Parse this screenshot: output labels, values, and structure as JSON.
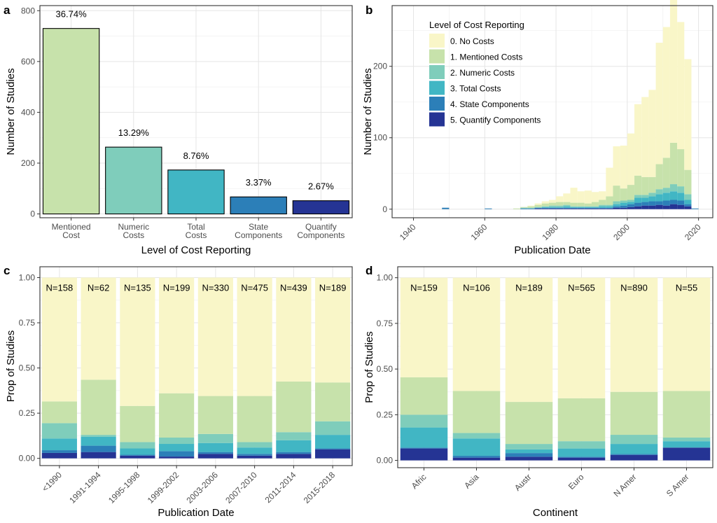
{
  "colors": {
    "level0": "#f9f6c8",
    "level1": "#c7e2ab",
    "level2": "#7fcdbb",
    "level3": "#41b6c4",
    "level4": "#2c7fb8",
    "level5": "#253494"
  },
  "chart_data": [
    {
      "panel": "a",
      "type": "bar",
      "xlabel": "Level of Cost Reporting",
      "ylabel": "Number of Studies",
      "categories": [
        "Mentioned\nCost",
        "Numeric\nCosts",
        "Total\nCosts",
        "State\nComponents",
        "Quantify\nComponents"
      ],
      "values": [
        730,
        263,
        173,
        67,
        52
      ],
      "labels": [
        "36.74%",
        "13.29%",
        "8.76%",
        "3.37%",
        "2.67%"
      ],
      "bar_colors": [
        "#c7e2ab",
        "#7fcdbb",
        "#41b6c4",
        "#2c7fb8",
        "#253494"
      ],
      "ylim": [
        -15,
        820
      ],
      "yticks": [
        0,
        200,
        400,
        600,
        800
      ],
      "grid": true
    },
    {
      "panel": "b",
      "type": "bar",
      "stacked": true,
      "xlabel": "Publication Date",
      "ylabel": "Number of Studies",
      "xlim": [
        1934,
        2024
      ],
      "xticks": [
        1940,
        1960,
        1980,
        2000,
        2020
      ],
      "ylim": [
        -12,
        285
      ],
      "yticks": [
        0,
        100,
        200
      ],
      "legend_title": "Level of Cost Reporting",
      "legend_position": "top-left",
      "legend_labels": [
        "0. No Costs",
        "1. Mentioned Costs",
        "2. Numeric Costs",
        "3. Total Costs",
        "4. State Components",
        "5. Quantify Components"
      ],
      "bin_width": 2,
      "bins": [
        1948,
        1960,
        1966,
        1968,
        1970,
        1972,
        1974,
        1976,
        1978,
        1980,
        1982,
        1984,
        1986,
        1988,
        1990,
        1992,
        1994,
        1996,
        1998,
        2000,
        2002,
        2004,
        2006,
        2008,
        2010,
        2012,
        2014,
        2016,
        2018
      ],
      "series": [
        {
          "name": "0. No Costs",
          "values": [
            0,
            0,
            0,
            0,
            0,
            1,
            2,
            3,
            4,
            8,
            12,
            21,
            16,
            18,
            14,
            12,
            40,
            55,
            60,
            72,
            100,
            112,
            122,
            170,
            183,
            205,
            178,
            155,
            0
          ]
        },
        {
          "name": "1. Mentioned Costs",
          "values": [
            0,
            0,
            0,
            1,
            1,
            2,
            3,
            4,
            4,
            5,
            4,
            5,
            5,
            4,
            6,
            7,
            12,
            22,
            17,
            21,
            27,
            25,
            22,
            35,
            42,
            58,
            52,
            34,
            0
          ]
        },
        {
          "name": "2. Numeric Costs",
          "values": [
            0,
            0,
            0,
            0,
            1,
            1,
            1,
            1,
            2,
            2,
            2,
            1,
            1,
            1,
            1,
            2,
            2,
            4,
            3,
            3,
            4,
            4,
            5,
            7,
            7,
            10,
            9,
            8,
            0
          ]
        },
        {
          "name": "3. Total Costs",
          "values": [
            0,
            0,
            0,
            0,
            0,
            0,
            0,
            1,
            1,
            1,
            2,
            1,
            1,
            1,
            1,
            2,
            2,
            3,
            4,
            3,
            7,
            6,
            7,
            10,
            11,
            12,
            11,
            6,
            0
          ]
        },
        {
          "name": "4. State Components",
          "values": [
            2,
            1,
            0,
            0,
            1,
            1,
            1,
            1,
            1,
            1,
            1,
            1,
            1,
            1,
            1,
            1,
            1,
            2,
            3,
            4,
            5,
            5,
            6,
            5,
            7,
            6,
            6,
            3,
            1
          ]
        },
        {
          "name": "5. Quantify Components",
          "values": [
            0,
            0,
            0,
            0,
            0,
            0,
            1,
            1,
            1,
            1,
            1,
            1,
            1,
            1,
            1,
            1,
            1,
            2,
            2,
            3,
            4,
            5,
            5,
            6,
            5,
            7,
            6,
            4,
            0
          ]
        }
      ],
      "grid": true
    },
    {
      "panel": "c",
      "type": "bar",
      "stacked": true,
      "xlabel": "Publication Date",
      "ylabel": "Prop of Studies",
      "categories": [
        "<1990",
        "1991-1994",
        "1995-1998",
        "1999-2002",
        "2003-2006",
        "2007-2010",
        "2011-2014",
        "2015-2018"
      ],
      "n_labels": [
        "N=158",
        "N=62",
        "N=135",
        "N=199",
        "N=330",
        "N=475",
        "N=439",
        "N=189"
      ],
      "ylim": [
        -0.04,
        1.06
      ],
      "yticks": [
        "0.00",
        "0.25",
        "0.50",
        "0.75",
        "1.00"
      ],
      "series": [
        {
          "name": "0. No Costs",
          "values": [
            0.685,
            0.565,
            0.71,
            0.64,
            0.655,
            0.655,
            0.575,
            0.58
          ]
        },
        {
          "name": "1. Mentioned Costs",
          "values": [
            0.12,
            0.305,
            0.2,
            0.245,
            0.21,
            0.255,
            0.28,
            0.215
          ]
        },
        {
          "name": "2. Numeric Costs",
          "values": [
            0.085,
            0.01,
            0.035,
            0.035,
            0.05,
            0.03,
            0.045,
            0.075
          ]
        },
        {
          "name": "3. Total Costs",
          "values": [
            0.065,
            0.05,
            0.035,
            0.04,
            0.05,
            0.035,
            0.065,
            0.075
          ]
        },
        {
          "name": "4. State Components",
          "values": [
            0.015,
            0.035,
            0.005,
            0.03,
            0.01,
            0.01,
            0.01,
            0.005
          ]
        },
        {
          "name": "5. Quantify Components",
          "values": [
            0.03,
            0.035,
            0.015,
            0.01,
            0.025,
            0.015,
            0.025,
            0.05
          ]
        }
      ],
      "grid": true
    },
    {
      "panel": "d",
      "type": "bar",
      "stacked": true,
      "xlabel": "Continent",
      "ylabel": "Prop of Studies",
      "categories": [
        "Afric",
        "Asia",
        "Austr",
        "Euro",
        "N Amer",
        "S Amer"
      ],
      "n_labels": [
        "N=159",
        "N=106",
        "N=189",
        "N=565",
        "N=890",
        "N=55"
      ],
      "ylim": [
        -0.04,
        1.06
      ],
      "yticks": [
        "0.00",
        "0.25",
        "0.50",
        "0.75",
        "1.00"
      ],
      "series": [
        {
          "name": "0. No Costs",
          "values": [
            0.545,
            0.62,
            0.68,
            0.66,
            0.625,
            0.62
          ]
        },
        {
          "name": "1. Mentioned Costs",
          "values": [
            0.205,
            0.23,
            0.23,
            0.235,
            0.235,
            0.255
          ]
        },
        {
          "name": "2. Numeric Costs",
          "values": [
            0.07,
            0.03,
            0.03,
            0.04,
            0.05,
            0.02
          ]
        },
        {
          "name": "3. Total Costs",
          "values": [
            0.11,
            0.095,
            0.02,
            0.045,
            0.055,
            0.035
          ]
        },
        {
          "name": "4. State Components",
          "values": [
            0.005,
            0.01,
            0.02,
            0.005,
            0.005,
            0.0
          ]
        },
        {
          "name": "5. Quantify Components",
          "values": [
            0.065,
            0.015,
            0.02,
            0.015,
            0.03,
            0.07
          ]
        }
      ],
      "grid": true
    }
  ]
}
